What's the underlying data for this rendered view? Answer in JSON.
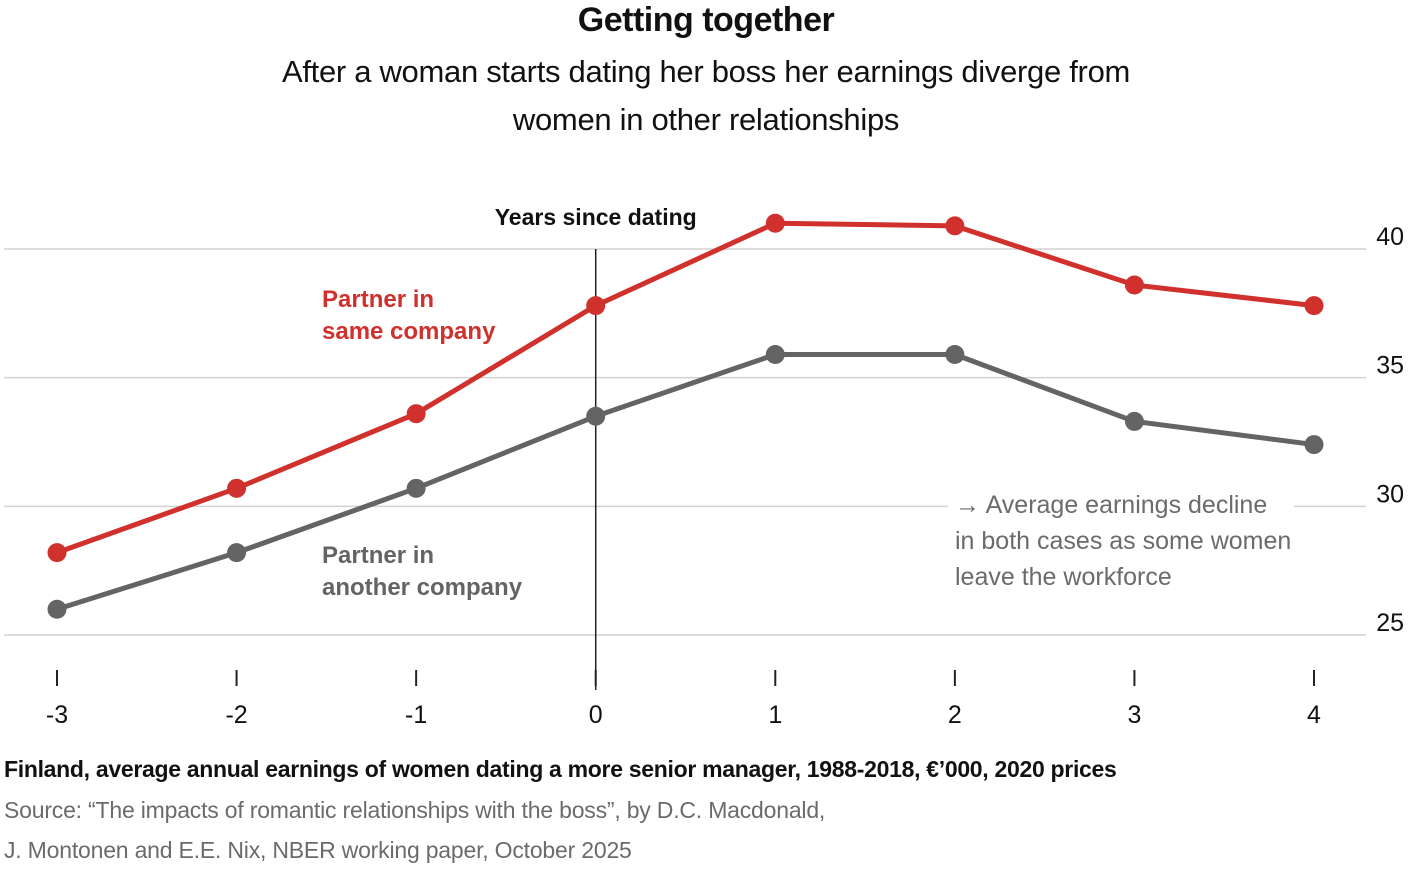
{
  "title": "Getting together",
  "subtitle": "After a woman starts dating her boss her earnings diverge from women in other relationships",
  "caption": "Finland, average annual earnings of women dating a more senior manager, 1988-2018, €’000, 2020 prices",
  "source_line1": "Source: “The impacts of romantic relationships with the boss”, by D.C. Macdonald,",
  "source_line2": "J. Montonen and E.E. Nix, NBER working paper, October 2025",
  "chart_data": {
    "type": "line",
    "x_label": "Years since dating",
    "x": [
      -3,
      -2,
      -1,
      0,
      1,
      2,
      3,
      4
    ],
    "x_tick_labels": [
      "-3",
      "-2",
      "-1",
      "0",
      "1",
      "2",
      "3",
      "4"
    ],
    "y_tick_labels": [
      "40",
      "35",
      "30",
      "25"
    ],
    "y_ticks": [
      40,
      35,
      30,
      25
    ],
    "ylim": [
      23.9,
      41.8
    ],
    "y_axis_side": "right",
    "grid": true,
    "series": [
      {
        "name": "Partner in same company",
        "label_lines": [
          "Partner in",
          "same company"
        ],
        "color": "#d0312d",
        "values": [
          28.2,
          30.7,
          33.6,
          37.8,
          41.0,
          40.9,
          38.6,
          37.8
        ]
      },
      {
        "name": "Partner in another company",
        "label_lines": [
          "Partner in",
          "another company"
        ],
        "color": "#646464",
        "values": [
          26.0,
          28.2,
          30.7,
          33.5,
          35.9,
          35.9,
          33.3,
          32.4
        ]
      }
    ],
    "annotation": {
      "lines": [
        "→ Average earnings decline",
        "in both cases as some women",
        "leave the workforce"
      ]
    },
    "vertical_marker_x": 0
  }
}
